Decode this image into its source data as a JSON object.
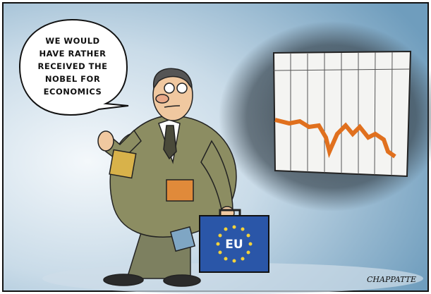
{
  "speech_bubble": {
    "lines": [
      "WE WOULD",
      "HAVE RATHER",
      "RECEIVED THE",
      "NOBEL FOR",
      "ECONOMICS"
    ]
  },
  "briefcase": {
    "label": "EU"
  },
  "signature": "CHAPPATTE"
}
